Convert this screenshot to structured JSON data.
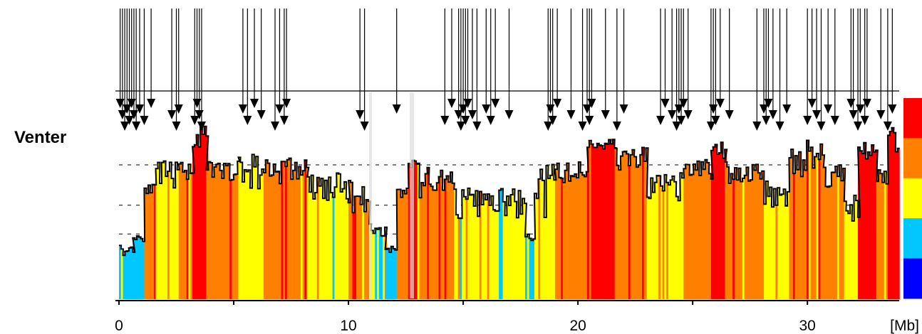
{
  "sample_name": "Venter",
  "chart_data": {
    "type": "bar",
    "title": "",
    "xlabel": "",
    "ylabel": "",
    "x_unit": "[Mb]",
    "x_ticks": [
      0,
      10,
      20,
      30
    ],
    "xlim": [
      0,
      34
    ],
    "grid": "dashed horizontal reference lines",
    "legend": "color scale bar at right",
    "color_scale": [
      "#ff0000",
      "#ff8000",
      "#ffff00",
      "#00c8ff",
      "#0000ff"
    ],
    "bar_colors": [
      "#00c8ff",
      "#ffff00",
      "#ff8000",
      "#ff0000"
    ],
    "profile_segments": [
      {
        "x": [
          0.0,
          0.6
        ],
        "y": [
          0.28,
          0.22
        ],
        "color": "#00c8ff"
      },
      {
        "x": [
          0.6,
          1.1
        ],
        "y": [
          0.3,
          0.35
        ],
        "color": "#00c8ff"
      },
      {
        "x": [
          1.1,
          1.6
        ],
        "y": [
          0.55,
          0.6
        ],
        "color": "#ff8000"
      },
      {
        "x": [
          1.6,
          2.6
        ],
        "y": [
          0.58,
          0.72
        ],
        "color": "#ffff00"
      },
      {
        "x": [
          2.6,
          3.2
        ],
        "y": [
          0.62,
          0.72
        ],
        "color": "#ff8000"
      },
      {
        "x": [
          3.2,
          3.8
        ],
        "y": [
          0.78,
          0.92
        ],
        "color": "#ff0000"
      },
      {
        "x": [
          3.8,
          5.2
        ],
        "y": [
          0.62,
          0.72
        ],
        "color": "#ff8000"
      },
      {
        "x": [
          5.2,
          6.3
        ],
        "y": [
          0.55,
          0.8
        ],
        "color": "#ffff00"
      },
      {
        "x": [
          6.3,
          8.2
        ],
        "y": [
          0.6,
          0.75
        ],
        "color": "#ff8000"
      },
      {
        "x": [
          8.2,
          10.0
        ],
        "y": [
          0.5,
          0.66
        ],
        "color": "#ffff00"
      },
      {
        "x": [
          10.0,
          10.9
        ],
        "y": [
          0.45,
          0.62
        ],
        "color": "#ff8000"
      },
      {
        "x": [
          10.9,
          11.6
        ],
        "y": [
          0.32,
          0.4
        ],
        "color": "#ffff00"
      },
      {
        "x": [
          11.6,
          12.1
        ],
        "y": [
          0.24,
          0.28
        ],
        "color": "#00c8ff"
      },
      {
        "x": [
          12.1,
          12.6
        ],
        "y": [
          0.48,
          0.62
        ],
        "color": "#ff8000"
      },
      {
        "x": [
          12.6,
          13.0
        ],
        "y": [
          0.68,
          0.75
        ],
        "color": "#ff0000"
      },
      {
        "x": [
          13.0,
          13.5
        ],
        "y": [
          0.5,
          0.72
        ],
        "color": "#ff8000"
      },
      {
        "x": [
          13.5,
          14.6
        ],
        "y": [
          0.56,
          0.68
        ],
        "color": "#ff8000"
      },
      {
        "x": [
          14.6,
          17.7
        ],
        "y": [
          0.42,
          0.58
        ],
        "color": "#ffff00"
      },
      {
        "x": [
          17.7,
          18.1
        ],
        "y": [
          0.3,
          0.34
        ],
        "color": "#00c8ff"
      },
      {
        "x": [
          18.1,
          19.0
        ],
        "y": [
          0.4,
          0.72
        ],
        "color": "#ffff00"
      },
      {
        "x": [
          19.0,
          20.4
        ],
        "y": [
          0.6,
          0.72
        ],
        "color": "#ff8000"
      },
      {
        "x": [
          20.4,
          21.6
        ],
        "y": [
          0.78,
          0.84
        ],
        "color": "#ff0000"
      },
      {
        "x": [
          21.6,
          23.0
        ],
        "y": [
          0.66,
          0.8
        ],
        "color": "#ff8000"
      },
      {
        "x": [
          23.0,
          24.6
        ],
        "y": [
          0.5,
          0.66
        ],
        "color": "#ffff00"
      },
      {
        "x": [
          24.6,
          25.8
        ],
        "y": [
          0.62,
          0.74
        ],
        "color": "#ff8000"
      },
      {
        "x": [
          25.8,
          26.4
        ],
        "y": [
          0.72,
          0.82
        ],
        "color": "#ff0000"
      },
      {
        "x": [
          26.4,
          28.1
        ],
        "y": [
          0.6,
          0.72
        ],
        "color": "#ff8000"
      },
      {
        "x": [
          28.1,
          29.2
        ],
        "y": [
          0.48,
          0.62
        ],
        "color": "#ffff00"
      },
      {
        "x": [
          29.2,
          30.7
        ],
        "y": [
          0.6,
          0.86
        ],
        "color": "#ff8000"
      },
      {
        "x": [
          30.7,
          31.6
        ],
        "y": [
          0.58,
          0.72
        ],
        "color": "#ff8000"
      },
      {
        "x": [
          31.6,
          32.2
        ],
        "y": [
          0.4,
          0.58
        ],
        "color": "#ffff00"
      },
      {
        "x": [
          32.2,
          33.0
        ],
        "y": [
          0.72,
          0.82
        ],
        "color": "#ff0000"
      },
      {
        "x": [
          33.0,
          33.5
        ],
        "y": [
          0.58,
          0.7
        ],
        "color": "#ff8000"
      },
      {
        "x": [
          33.5,
          34.0
        ],
        "y": [
          0.76,
          0.9
        ],
        "color": "#ff0000"
      }
    ],
    "arrow_positions_mb": [
      0.05,
      0.15,
      0.25,
      0.35,
      0.45,
      0.55,
      0.65,
      0.75,
      0.9,
      1.1,
      1.4,
      2.3,
      2.5,
      2.6,
      3.3,
      3.4,
      3.5,
      3.6,
      5.4,
      5.6,
      5.9,
      6.2,
      6.8,
      7.0,
      7.2,
      7.3,
      10.5,
      10.7,
      12.1,
      14.2,
      14.5,
      14.8,
      14.9,
      15.0,
      15.1,
      15.2,
      15.4,
      15.6,
      16.0,
      16.2,
      16.4,
      17.0,
      18.7,
      18.8,
      18.9,
      19.1,
      19.7,
      20.2,
      20.4,
      20.5,
      20.6,
      21.2,
      21.7,
      22.0,
      23.6,
      23.8,
      24.1,
      24.3,
      24.4,
      24.5,
      24.6,
      24.8,
      25.8,
      25.9,
      26.0,
      26.2,
      26.6,
      27.8,
      28.1,
      28.2,
      28.3,
      28.5,
      28.8,
      29.1,
      30.0,
      30.2,
      30.4,
      30.6,
      30.9,
      31.2,
      31.9,
      32.0,
      32.2,
      32.3,
      32.5,
      32.6,
      33.2,
      33.5,
      33.7
    ]
  }
}
